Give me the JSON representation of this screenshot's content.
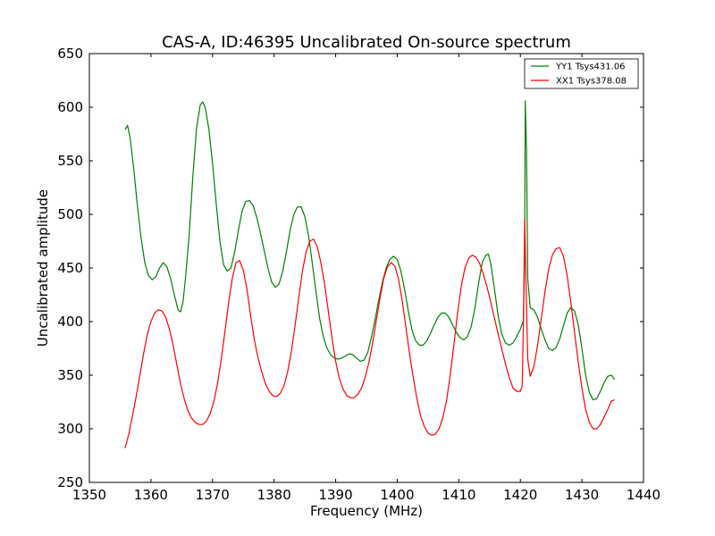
{
  "chart_data": {
    "type": "line",
    "title": "CAS-A, ID:46395 Uncalibrated On-source spectrum",
    "xlabel": "Frequency (MHz)",
    "ylabel": "Uncalibrated amplitude",
    "xlim": [
      1350,
      1440
    ],
    "ylim": [
      250,
      650
    ],
    "xticks": [
      1350,
      1360,
      1370,
      1380,
      1390,
      1400,
      1410,
      1420,
      1430,
      1440
    ],
    "yticks": [
      250,
      300,
      350,
      400,
      450,
      500,
      550,
      600,
      650
    ],
    "grid": false,
    "legend_position": "top-right",
    "series": [
      {
        "name": "YY1 Tsys431.06",
        "color": "#008000",
        "points": [
          [
            1355.8,
            579
          ],
          [
            1356.2,
            583
          ],
          [
            1356.6,
            572
          ],
          [
            1357.2,
            543
          ],
          [
            1357.8,
            508
          ],
          [
            1358.4,
            478
          ],
          [
            1359.0,
            455
          ],
          [
            1359.6,
            443
          ],
          [
            1360.2,
            439
          ],
          [
            1360.8,
            442
          ],
          [
            1361.4,
            450
          ],
          [
            1362.0,
            455
          ],
          [
            1362.6,
            451
          ],
          [
            1363.2,
            440
          ],
          [
            1363.8,
            425
          ],
          [
            1364.4,
            411
          ],
          [
            1364.8,
            409
          ],
          [
            1365.2,
            418
          ],
          [
            1365.6,
            440
          ],
          [
            1366.2,
            480
          ],
          [
            1366.8,
            535
          ],
          [
            1367.4,
            580
          ],
          [
            1368.0,
            602
          ],
          [
            1368.4,
            605
          ],
          [
            1368.8,
            600
          ],
          [
            1369.4,
            580
          ],
          [
            1370.0,
            548
          ],
          [
            1370.6,
            510
          ],
          [
            1371.2,
            475
          ],
          [
            1371.8,
            453
          ],
          [
            1372.4,
            447
          ],
          [
            1373.0,
            450
          ],
          [
            1373.6,
            465
          ],
          [
            1374.2,
            485
          ],
          [
            1374.8,
            503
          ],
          [
            1375.4,
            512
          ],
          [
            1376.0,
            513
          ],
          [
            1376.6,
            508
          ],
          [
            1377.2,
            497
          ],
          [
            1377.8,
            482
          ],
          [
            1378.4,
            466
          ],
          [
            1379.0,
            450
          ],
          [
            1379.6,
            437
          ],
          [
            1380.2,
            432
          ],
          [
            1380.8,
            435
          ],
          [
            1381.4,
            447
          ],
          [
            1382.0,
            465
          ],
          [
            1382.6,
            485
          ],
          [
            1383.2,
            500
          ],
          [
            1383.8,
            507
          ],
          [
            1384.4,
            507
          ],
          [
            1385.0,
            498
          ],
          [
            1385.6,
            480
          ],
          [
            1386.2,
            455
          ],
          [
            1386.8,
            428
          ],
          [
            1387.4,
            403
          ],
          [
            1388.0,
            386
          ],
          [
            1388.6,
            375
          ],
          [
            1389.2,
            369
          ],
          [
            1389.8,
            366
          ],
          [
            1390.4,
            365
          ],
          [
            1391.0,
            366
          ],
          [
            1391.6,
            368
          ],
          [
            1392.2,
            370
          ],
          [
            1392.8,
            369
          ],
          [
            1393.4,
            366
          ],
          [
            1394.0,
            363
          ],
          [
            1394.6,
            364
          ],
          [
            1395.2,
            371
          ],
          [
            1395.8,
            385
          ],
          [
            1396.4,
            402
          ],
          [
            1397.0,
            420
          ],
          [
            1397.6,
            437
          ],
          [
            1398.2,
            450
          ],
          [
            1398.8,
            458
          ],
          [
            1399.4,
            461
          ],
          [
            1400.0,
            458
          ],
          [
            1400.6,
            447
          ],
          [
            1401.2,
            430
          ],
          [
            1401.8,
            410
          ],
          [
            1402.4,
            392
          ],
          [
            1403.0,
            382
          ],
          [
            1403.6,
            378
          ],
          [
            1404.2,
            378
          ],
          [
            1404.8,
            382
          ],
          [
            1405.4,
            389
          ],
          [
            1406.0,
            397
          ],
          [
            1406.6,
            404
          ],
          [
            1407.2,
            408
          ],
          [
            1407.8,
            408
          ],
          [
            1408.4,
            404
          ],
          [
            1409.0,
            397
          ],
          [
            1409.6,
            390
          ],
          [
            1410.2,
            385
          ],
          [
            1410.8,
            383
          ],
          [
            1411.4,
            386
          ],
          [
            1412.0,
            395
          ],
          [
            1412.6,
            412
          ],
          [
            1413.2,
            435
          ],
          [
            1413.8,
            455
          ],
          [
            1414.4,
            462
          ],
          [
            1414.8,
            463
          ],
          [
            1415.2,
            454
          ],
          [
            1415.8,
            430
          ],
          [
            1416.4,
            405
          ],
          [
            1417.0,
            388
          ],
          [
            1417.6,
            380
          ],
          [
            1418.2,
            378
          ],
          [
            1418.8,
            380
          ],
          [
            1419.4,
            386
          ],
          [
            1420.0,
            393
          ],
          [
            1420.5,
            401
          ],
          [
            1420.7,
            470
          ],
          [
            1420.8,
            606
          ],
          [
            1421.0,
            560
          ],
          [
            1421.2,
            440
          ],
          [
            1421.6,
            413
          ],
          [
            1422.2,
            411
          ],
          [
            1422.8,
            404
          ],
          [
            1423.4,
            393
          ],
          [
            1424.0,
            383
          ],
          [
            1424.6,
            375
          ],
          [
            1425.2,
            373
          ],
          [
            1425.8,
            376
          ],
          [
            1426.4,
            384
          ],
          [
            1427.0,
            396
          ],
          [
            1427.6,
            408
          ],
          [
            1428.2,
            413
          ],
          [
            1428.8,
            410
          ],
          [
            1429.4,
            397
          ],
          [
            1430.0,
            375
          ],
          [
            1430.6,
            350
          ],
          [
            1431.2,
            334
          ],
          [
            1431.8,
            327
          ],
          [
            1432.4,
            328
          ],
          [
            1433.0,
            335
          ],
          [
            1433.6,
            343
          ],
          [
            1434.2,
            349
          ],
          [
            1434.8,
            350
          ],
          [
            1435.3,
            346
          ]
        ]
      },
      {
        "name": "XX1 Tsys378.08",
        "color": "#ff0000",
        "points": [
          [
            1355.8,
            282
          ],
          [
            1356.4,
            295
          ],
          [
            1357.0,
            312
          ],
          [
            1357.6,
            330
          ],
          [
            1358.2,
            350
          ],
          [
            1358.8,
            370
          ],
          [
            1359.4,
            388
          ],
          [
            1360.0,
            400
          ],
          [
            1360.6,
            408
          ],
          [
            1361.2,
            411
          ],
          [
            1361.8,
            410
          ],
          [
            1362.4,
            404
          ],
          [
            1363.0,
            393
          ],
          [
            1363.6,
            378
          ],
          [
            1364.2,
            360
          ],
          [
            1364.8,
            342
          ],
          [
            1365.4,
            328
          ],
          [
            1366.0,
            317
          ],
          [
            1366.6,
            310
          ],
          [
            1367.2,
            306
          ],
          [
            1367.8,
            304
          ],
          [
            1368.4,
            304
          ],
          [
            1369.0,
            307
          ],
          [
            1369.6,
            314
          ],
          [
            1370.2,
            325
          ],
          [
            1370.8,
            342
          ],
          [
            1371.4,
            364
          ],
          [
            1372.0,
            390
          ],
          [
            1372.6,
            417
          ],
          [
            1373.2,
            440
          ],
          [
            1373.8,
            455
          ],
          [
            1374.4,
            457
          ],
          [
            1375.0,
            448
          ],
          [
            1375.6,
            430
          ],
          [
            1376.2,
            405
          ],
          [
            1376.8,
            383
          ],
          [
            1377.4,
            366
          ],
          [
            1378.0,
            353
          ],
          [
            1378.6,
            342
          ],
          [
            1379.2,
            335
          ],
          [
            1379.8,
            331
          ],
          [
            1380.4,
            330
          ],
          [
            1381.0,
            333
          ],
          [
            1381.6,
            340
          ],
          [
            1382.2,
            353
          ],
          [
            1382.8,
            372
          ],
          [
            1383.4,
            396
          ],
          [
            1384.0,
            422
          ],
          [
            1384.6,
            447
          ],
          [
            1385.2,
            465
          ],
          [
            1385.8,
            475
          ],
          [
            1386.4,
            477
          ],
          [
            1387.0,
            470
          ],
          [
            1387.6,
            455
          ],
          [
            1388.2,
            435
          ],
          [
            1388.8,
            410
          ],
          [
            1389.4,
            385
          ],
          [
            1390.0,
            363
          ],
          [
            1390.6,
            347
          ],
          [
            1391.2,
            337
          ],
          [
            1391.8,
            331
          ],
          [
            1392.4,
            329
          ],
          [
            1393.0,
            329
          ],
          [
            1393.6,
            332
          ],
          [
            1394.2,
            338
          ],
          [
            1394.8,
            348
          ],
          [
            1395.4,
            362
          ],
          [
            1396.0,
            380
          ],
          [
            1396.6,
            401
          ],
          [
            1397.2,
            422
          ],
          [
            1397.8,
            440
          ],
          [
            1398.4,
            451
          ],
          [
            1399.0,
            455
          ],
          [
            1399.6,
            452
          ],
          [
            1400.2,
            440
          ],
          [
            1400.8,
            420
          ],
          [
            1401.4,
            395
          ],
          [
            1402.0,
            370
          ],
          [
            1402.6,
            348
          ],
          [
            1403.2,
            328
          ],
          [
            1403.8,
            312
          ],
          [
            1404.4,
            302
          ],
          [
            1405.0,
            296
          ],
          [
            1405.6,
            294
          ],
          [
            1406.2,
            295
          ],
          [
            1406.8,
            300
          ],
          [
            1407.4,
            310
          ],
          [
            1408.0,
            326
          ],
          [
            1408.6,
            350
          ],
          [
            1409.2,
            378
          ],
          [
            1409.8,
            408
          ],
          [
            1410.4,
            433
          ],
          [
            1411.0,
            450
          ],
          [
            1411.6,
            459
          ],
          [
            1412.2,
            462
          ],
          [
            1412.8,
            460
          ],
          [
            1413.4,
            454
          ],
          [
            1414.0,
            444
          ],
          [
            1414.6,
            432
          ],
          [
            1415.2,
            418
          ],
          [
            1415.8,
            403
          ],
          [
            1416.4,
            388
          ],
          [
            1417.0,
            374
          ],
          [
            1417.6,
            360
          ],
          [
            1418.2,
            348
          ],
          [
            1418.8,
            338
          ],
          [
            1419.4,
            335
          ],
          [
            1420.0,
            335
          ],
          [
            1420.3,
            340
          ],
          [
            1420.5,
            400
          ],
          [
            1420.7,
            495
          ],
          [
            1420.9,
            440
          ],
          [
            1421.2,
            365
          ],
          [
            1421.6,
            349
          ],
          [
            1422.2,
            358
          ],
          [
            1422.8,
            378
          ],
          [
            1423.4,
            403
          ],
          [
            1424.0,
            428
          ],
          [
            1424.6,
            449
          ],
          [
            1425.2,
            462
          ],
          [
            1425.8,
            468
          ],
          [
            1426.4,
            469
          ],
          [
            1427.0,
            461
          ],
          [
            1427.6,
            443
          ],
          [
            1428.2,
            418
          ],
          [
            1428.8,
            390
          ],
          [
            1429.4,
            362
          ],
          [
            1430.0,
            338
          ],
          [
            1430.6,
            318
          ],
          [
            1431.2,
            306
          ],
          [
            1431.8,
            300
          ],
          [
            1432.4,
            300
          ],
          [
            1433.0,
            304
          ],
          [
            1433.6,
            311
          ],
          [
            1434.2,
            318
          ],
          [
            1434.8,
            326
          ],
          [
            1435.3,
            327
          ]
        ]
      }
    ]
  }
}
